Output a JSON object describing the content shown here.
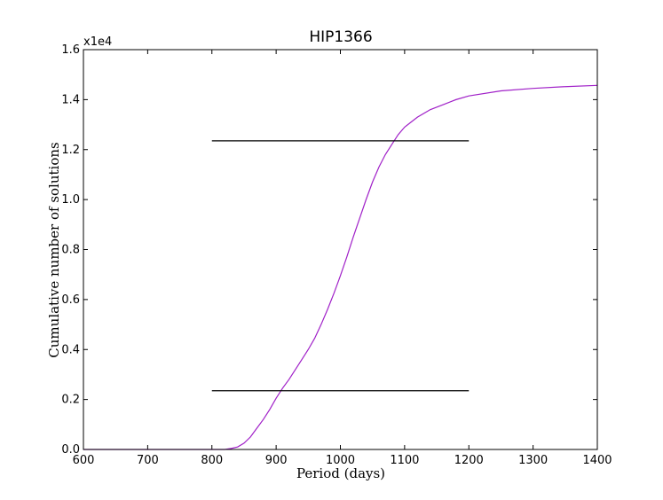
{
  "chart_data": {
    "type": "line",
    "title": "HIP1366",
    "xlabel": "Period (days)",
    "ylabel": "Cumulative number of solutions",
    "y_multiplier_label": "x1e4",
    "xlim": [
      600,
      1400
    ],
    "ylim": [
      0.0,
      1.6
    ],
    "xticks": [
      600,
      700,
      800,
      900,
      1000,
      1100,
      1200,
      1300,
      1400
    ],
    "xtick_labels": [
      "600",
      "700",
      "800",
      "900",
      "1000",
      "1100",
      "1200",
      "1300",
      "1400"
    ],
    "yticks": [
      0.0,
      0.2,
      0.4,
      0.6,
      0.8,
      1.0,
      1.2,
      1.4,
      1.6
    ],
    "ytick_labels": [
      "0.0",
      "0.2",
      "0.4",
      "0.6",
      "0.8",
      "1.0",
      "1.2",
      "1.4",
      "1.6"
    ],
    "grid": false,
    "series": [
      {
        "color": "#a020c8",
        "x": [
          600,
          700,
          800,
          820,
          830,
          840,
          850,
          860,
          870,
          880,
          890,
          900,
          910,
          920,
          930,
          940,
          950,
          960,
          970,
          980,
          990,
          1000,
          1010,
          1020,
          1030,
          1040,
          1050,
          1060,
          1070,
          1080,
          1090,
          1100,
          1110,
          1120,
          1140,
          1160,
          1180,
          1200,
          1250,
          1300,
          1350,
          1400
        ],
        "y": [
          0.0,
          0.0,
          0.0,
          0.0,
          0.004,
          0.01,
          0.025,
          0.05,
          0.085,
          0.12,
          0.16,
          0.205,
          0.245,
          0.28,
          0.32,
          0.36,
          0.4,
          0.445,
          0.5,
          0.56,
          0.625,
          0.695,
          0.77,
          0.85,
          0.925,
          1.0,
          1.07,
          1.13,
          1.18,
          1.22,
          1.26,
          1.29,
          1.31,
          1.33,
          1.36,
          1.38,
          1.4,
          1.415,
          1.435,
          1.445,
          1.452,
          1.457
        ]
      },
      {
        "color": "#000000",
        "x": [
          800,
          1200
        ],
        "y": [
          1.235,
          1.235
        ]
      },
      {
        "color": "#000000",
        "x": [
          800,
          1200
        ],
        "y": [
          0.235,
          0.235
        ]
      }
    ]
  }
}
